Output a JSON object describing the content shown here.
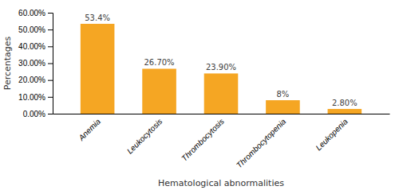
{
  "chart_data": {
    "type": "bar",
    "xlabel": "Hematological abnormalities",
    "ylabel": "Percentages",
    "categories": [
      "Anemia",
      "Leukocytosis",
      "Thrombocytosis",
      "Thrombocytopenia",
      "Leukopenia"
    ],
    "values": [
      53.4,
      26.7,
      23.9,
      8.0,
      2.8
    ],
    "value_labels": [
      "53.4%",
      "26.70%",
      "23.90%",
      "8%",
      "2.80%"
    ],
    "data_labels": true,
    "color": "#F5A623",
    "ylim": [
      0,
      60
    ],
    "yticks": [
      {
        "value": 0,
        "label": "0.00%"
      },
      {
        "value": 10,
        "label": "10.00%"
      },
      {
        "value": 20,
        "label": "20.00%"
      },
      {
        "value": 30,
        "label": "30.00%"
      },
      {
        "value": 40,
        "label": "40.00%"
      },
      {
        "value": 50,
        "label": "50.00%"
      },
      {
        "value": 60,
        "label": "60.00%"
      }
    ],
    "grid": false
  }
}
